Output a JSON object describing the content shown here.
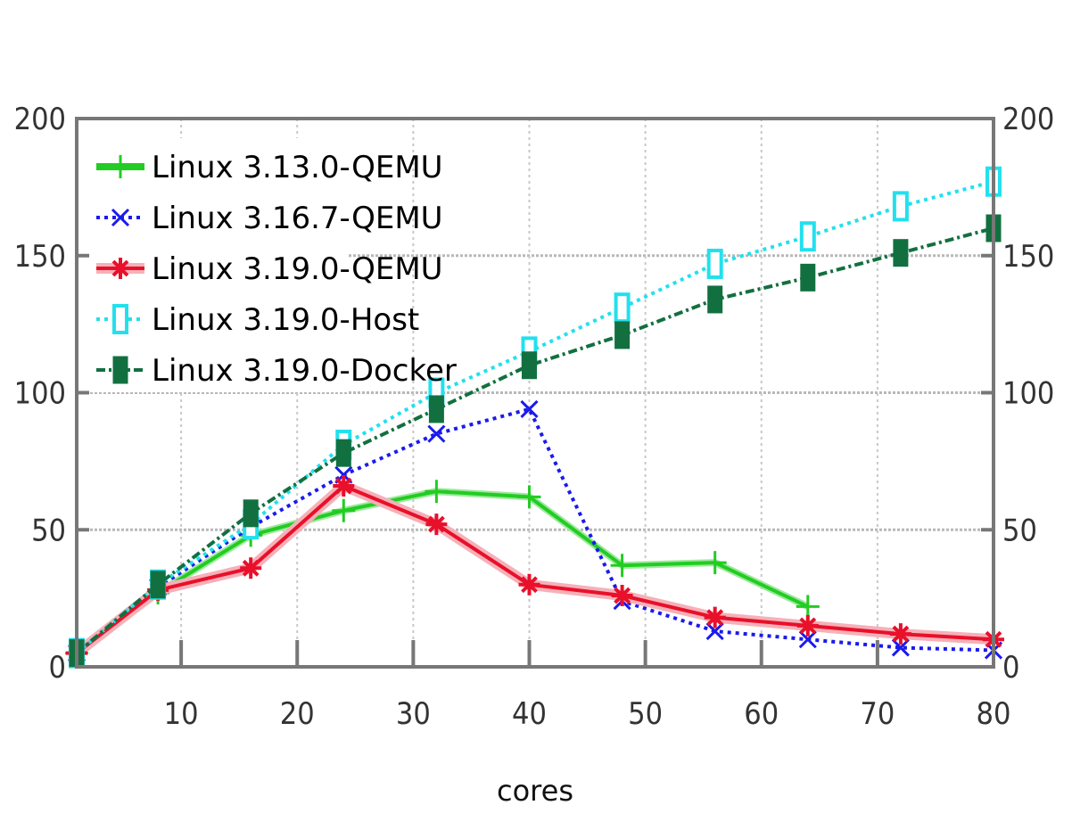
{
  "chart_data": {
    "type": "line",
    "title": "",
    "xlabel": "cores",
    "ylabel": "",
    "xlim": [
      1,
      80
    ],
    "ylim": [
      0,
      200
    ],
    "x_ticks": [
      10,
      20,
      30,
      40,
      50,
      60,
      70,
      80
    ],
    "y_ticks": [
      0,
      50,
      100,
      150,
      200
    ],
    "grid": true,
    "legend_position": "top-left",
    "series": [
      {
        "name": "Linux 3.13.0-QEMU",
        "color": "#22cc22",
        "marker": "plus",
        "dash": "solid",
        "x": [
          1,
          8,
          16,
          24,
          32,
          40,
          48,
          56,
          64
        ],
        "y": [
          5,
          27,
          48,
          57,
          64,
          62,
          37,
          38,
          22
        ]
      },
      {
        "name": "Linux 3.16.7-QEMU",
        "color": "#1a1aee",
        "marker": "cross",
        "dash": "dotted",
        "x": [
          1,
          8,
          16,
          24,
          32,
          40,
          48,
          56,
          64,
          72,
          80
        ],
        "y": [
          5,
          29,
          51,
          70,
          85,
          94,
          24,
          13,
          10,
          7,
          6
        ]
      },
      {
        "name": "Linux 3.19.0-QEMU",
        "color": "#e8102a",
        "marker": "star",
        "dash": "solid",
        "x": [
          1,
          8,
          16,
          24,
          32,
          40,
          48,
          56,
          64,
          72,
          80
        ],
        "y": [
          5,
          28,
          36,
          66,
          52,
          30,
          26,
          18,
          15,
          12,
          10
        ]
      },
      {
        "name": "Linux 3.19.0-Host",
        "color": "#22e0ee",
        "marker": "open-square",
        "dash": "dotted",
        "x": [
          1,
          8,
          16,
          24,
          32,
          40,
          48,
          56,
          64,
          72,
          80
        ],
        "y": [
          5,
          30,
          52,
          81,
          100,
          115,
          131,
          147,
          157,
          168,
          177
        ]
      },
      {
        "name": "Linux 3.19.0-Docker",
        "color": "#127040",
        "marker": "filled-square",
        "dash": "dashdot",
        "x": [
          1,
          8,
          16,
          24,
          32,
          40,
          48,
          56,
          64,
          72,
          80
        ],
        "y": [
          5,
          30,
          56,
          78,
          94,
          110,
          121,
          134,
          142,
          151,
          160
        ]
      }
    ]
  }
}
